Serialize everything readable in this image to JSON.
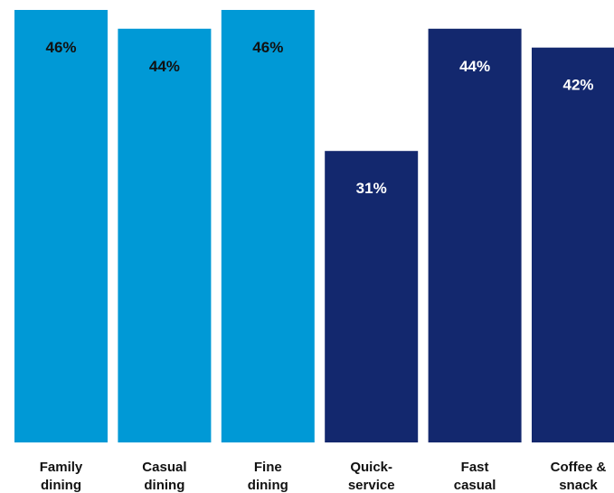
{
  "chart_data": {
    "type": "bar",
    "categories": [
      [
        "Family",
        "dining"
      ],
      [
        "Casual",
        "dining"
      ],
      [
        "Fine",
        "dining"
      ],
      [
        "Quick-",
        "service"
      ],
      [
        "Fast",
        "casual"
      ],
      [
        "Coffee &",
        "snack"
      ]
    ],
    "values": [
      46,
      44,
      46,
      31,
      44,
      42
    ],
    "value_labels": [
      "46%",
      "44%",
      "46%",
      "31%",
      "44%",
      "42%"
    ],
    "bar_colors": [
      "#0099d6",
      "#0099d6",
      "#0099d6",
      "#13286e",
      "#13286e",
      "#13286e"
    ],
    "label_colors": [
      "#111111",
      "#111111",
      "#111111",
      "#ffffff",
      "#ffffff",
      "#ffffff"
    ],
    "ylim": [
      0,
      46
    ],
    "grid": false,
    "legend": "none",
    "title": "",
    "xlabel": "",
    "ylabel": ""
  }
}
